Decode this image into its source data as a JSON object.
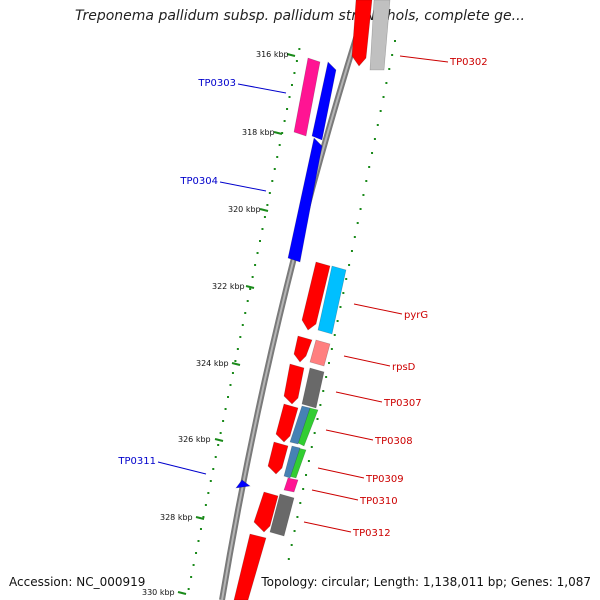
{
  "title": "Treponema pallidum subsp. pallidum str. Nichols, complete ge...",
  "footer": {
    "accession": "Accession: NC_000919",
    "topology": "Topology: circular; Length: 1,138,011 bp; Genes: 1,087"
  },
  "colors": {
    "backbone": "#808080",
    "tick": "#1a8a1a",
    "forward_label": "#0000cc",
    "reverse_label": "#cc0000"
  },
  "ticks": [
    "316 kbp",
    "318 kbp",
    "320 kbp",
    "322 kbp",
    "324 kbp",
    "326 kbp",
    "328 kbp",
    "330 kbp"
  ],
  "genes": [
    {
      "label": "TP0302",
      "strand": "reverse",
      "color": "#ff0000"
    },
    {
      "label": "",
      "strand": "reverse",
      "color": "#c0c0c0"
    },
    {
      "label": "TP0303",
      "strand": "forward",
      "color": "#ff1493"
    },
    {
      "label": "",
      "strand": "forward",
      "color": "#0000ff"
    },
    {
      "label": "TP0304",
      "strand": "forward",
      "color": "#0000ff"
    },
    {
      "label": "pyrG",
      "strand": "reverse",
      "color": "#00bfff"
    },
    {
      "label": "",
      "strand": "reverse",
      "color": "#ff0000"
    },
    {
      "label": "rpsD",
      "strand": "reverse",
      "color": "#ff7f7f"
    },
    {
      "label": "",
      "strand": "reverse",
      "color": "#ff0000"
    },
    {
      "label": "TP0307",
      "strand": "reverse",
      "color": "#696969"
    },
    {
      "label": "",
      "strand": "reverse",
      "color": "#ff0000"
    },
    {
      "label": "TP0308",
      "strand": "reverse",
      "color": "#32cd32"
    },
    {
      "label": "",
      "strand": "reverse",
      "color": "#4682b4"
    },
    {
      "label": "",
      "strand": "reverse",
      "color": "#ff0000"
    },
    {
      "label": "TP0309",
      "strand": "reverse",
      "color": "#32cd32"
    },
    {
      "label": "",
      "strand": "reverse",
      "color": "#4682b4"
    },
    {
      "label": "",
      "strand": "reverse",
      "color": "#ff0000"
    },
    {
      "label": "TP0310",
      "strand": "reverse",
      "color": "#ff1493"
    },
    {
      "label": "TP0311",
      "strand": "forward",
      "color": "#0000ff"
    },
    {
      "label": "",
      "strand": "reverse",
      "color": "#ff0000"
    },
    {
      "label": "TP0312",
      "strand": "reverse",
      "color": "#696969"
    },
    {
      "label": "",
      "strand": "reverse",
      "color": "#ff0000"
    }
  ]
}
